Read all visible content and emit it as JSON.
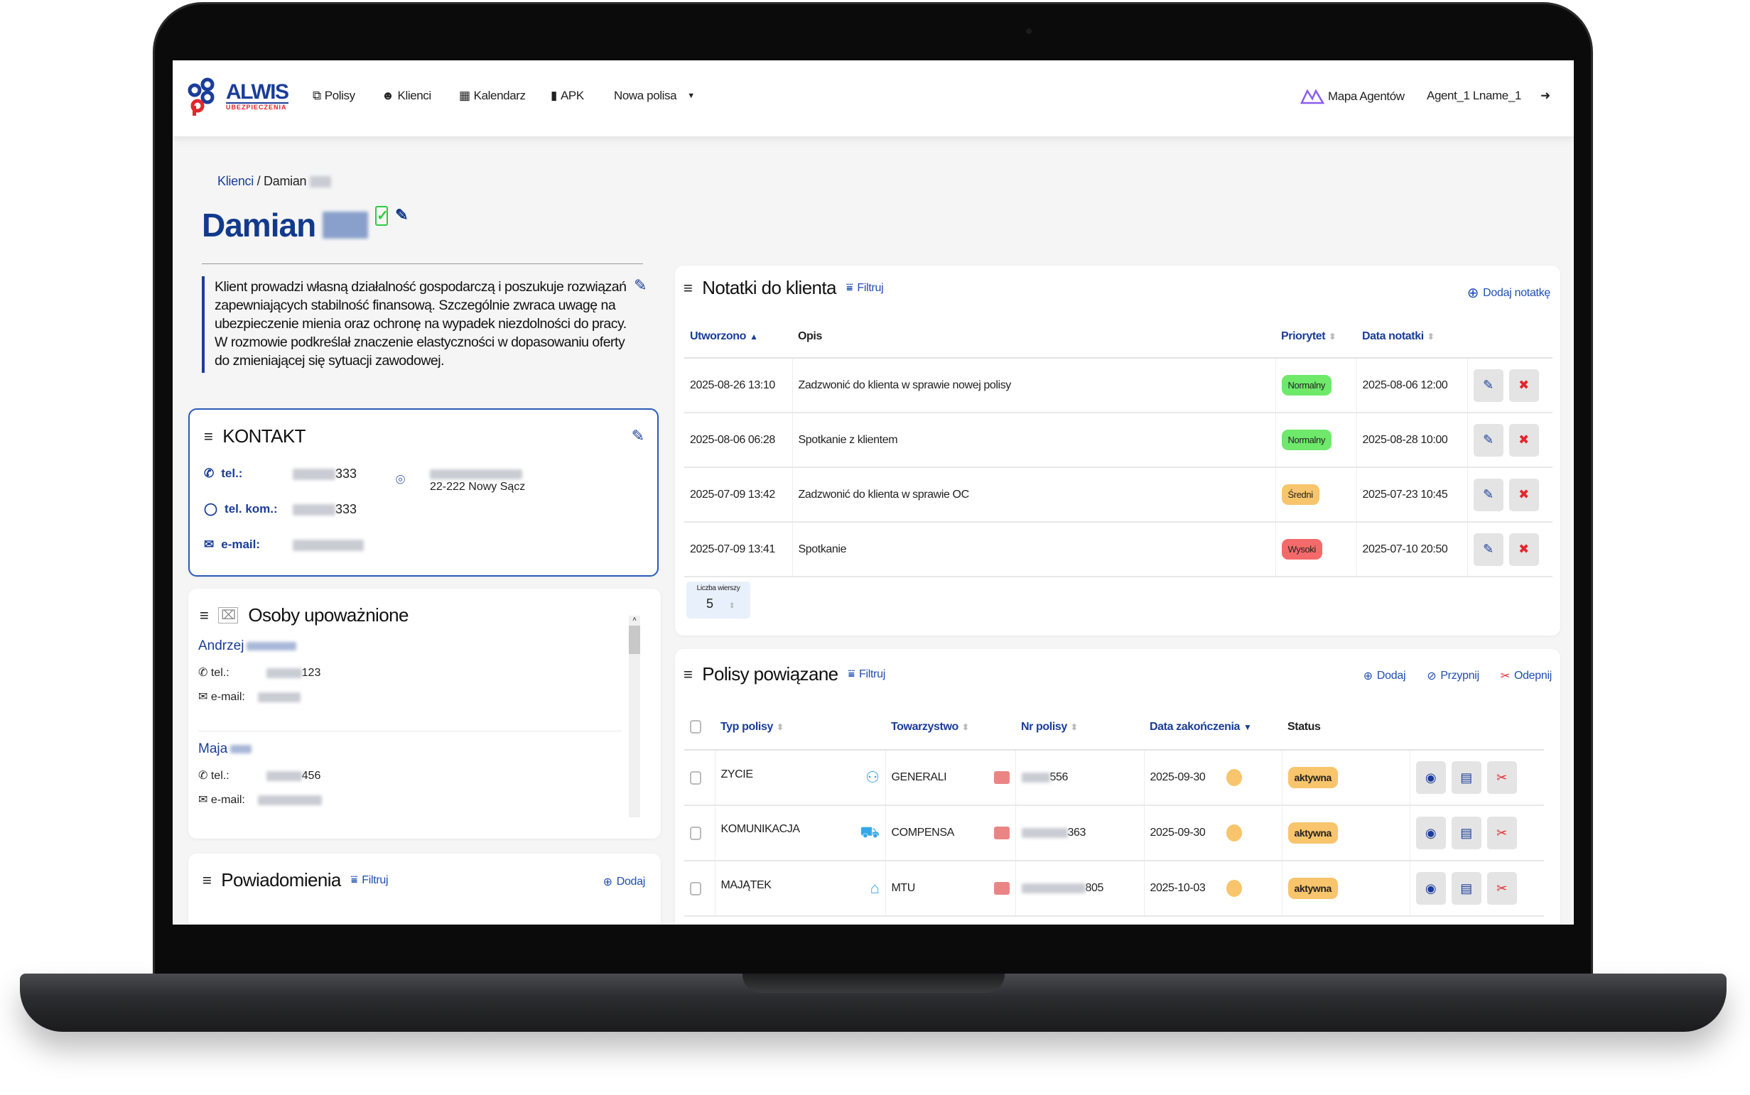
{
  "nav": {
    "logo_main": "ALWIS",
    "logo_sub": "UBEZPIECZENIA",
    "items": [
      {
        "label": "Polisy",
        "icon": "copy-icon"
      },
      {
        "label": "Klienci",
        "icon": "users-icon"
      },
      {
        "label": "Kalendarz",
        "icon": "calendar-icon"
      },
      {
        "label": "APK",
        "icon": "book-icon"
      },
      {
        "label": "Nowa polisa",
        "icon": "caret-down-icon"
      }
    ],
    "map_agents": "Mapa Agentów",
    "user": "Agent_1 Lname_1"
  },
  "breadcrumb": {
    "root": "Klienci",
    "sep": "/",
    "current": "Damian"
  },
  "client": {
    "first_name": "Damian",
    "description": "Klient prowadzi własną działalność gospodarczą i poszukuje rozwiązań zapewniających stabilność finansową. Szczególnie zwraca uwagę na ubezpieczenie mienia oraz ochronę na wypadek niezdolności do pracy. W rozmowie podkreślał znaczenie elastyczności w dopasowaniu oferty do zmieniającej się sytuacji zawodowej."
  },
  "contact": {
    "title": "KONTAKT",
    "tel_label": "tel.:",
    "tel_suffix": "333",
    "mobile_label": "tel. kom.:",
    "mobile_suffix": "333",
    "email_label": "e-mail:",
    "address_line2": "22-222 Nowy Sącz"
  },
  "authorized": {
    "title": "Osoby upoważnione",
    "tel_label": "tel.:",
    "email_label": "e-mail:",
    "people": [
      {
        "first_name": "Andrzej",
        "tel_suffix": "123"
      },
      {
        "first_name": "Maja",
        "tel_suffix": "456"
      }
    ]
  },
  "notifications": {
    "title": "Powiadomienia",
    "filter": "Filtruj",
    "add": "Dodaj"
  },
  "notes": {
    "title": "Notatki do klienta",
    "filter": "Filtruj",
    "add": "Dodaj notatkę",
    "columns": [
      "Utworzono",
      "Opis",
      "Priorytet",
      "Data notatki"
    ],
    "rows": [
      {
        "created": "2025-08-26 13:10",
        "desc": "Zadzwonić do klienta w sprawie nowej polisy",
        "priority": "Normalny",
        "date": "2025-08-06 12:00"
      },
      {
        "created": "2025-08-06 06:28",
        "desc": "Spotkanie z klientem",
        "priority": "Normalny",
        "date": "2025-08-28 10:00"
      },
      {
        "created": "2025-07-09 13:42",
        "desc": "Zadzwonić do klienta w sprawie OC",
        "priority": "Średni",
        "date": "2025-07-23 10:45"
      },
      {
        "created": "2025-07-09 13:41",
        "desc": "Spotkanie",
        "priority": "Wysoki",
        "date": "2025-07-10 20:50"
      }
    ],
    "rows_label": "Liczba wierszy",
    "rows_value": "5"
  },
  "priority_colors": {
    "Normalny": "#6ee96a",
    "Średni": "#f8c46c",
    "Wysoki": "#f46a6a"
  },
  "policies": {
    "title": "Polisy powiązane",
    "filter": "Filtruj",
    "add": "Dodaj",
    "attach": "Przypnij",
    "detach": "Odepnij",
    "columns": [
      "Typ polisy",
      "Towarzystwo",
      "Nr polisy",
      "Data zakończenia",
      "Status"
    ],
    "rows": [
      {
        "type": "ZYCIE",
        "type_icon": "family-icon",
        "company": "GENERALI",
        "nr_suffix": "556",
        "end": "2025-09-30",
        "status": "aktywna"
      },
      {
        "type": "KOMUNIKACJA",
        "type_icon": "car-icon",
        "company": "COMPENSA",
        "nr_suffix": "363",
        "end": "2025-09-30",
        "status": "aktywna"
      },
      {
        "type": "MAJĄTEK",
        "type_icon": "house-icon",
        "company": "MTU",
        "nr_suffix": "805",
        "end": "2025-10-03",
        "status": "aktywna"
      }
    ]
  },
  "colors": {
    "brand": "#1a3d99",
    "status_active": "#f8c46c"
  }
}
